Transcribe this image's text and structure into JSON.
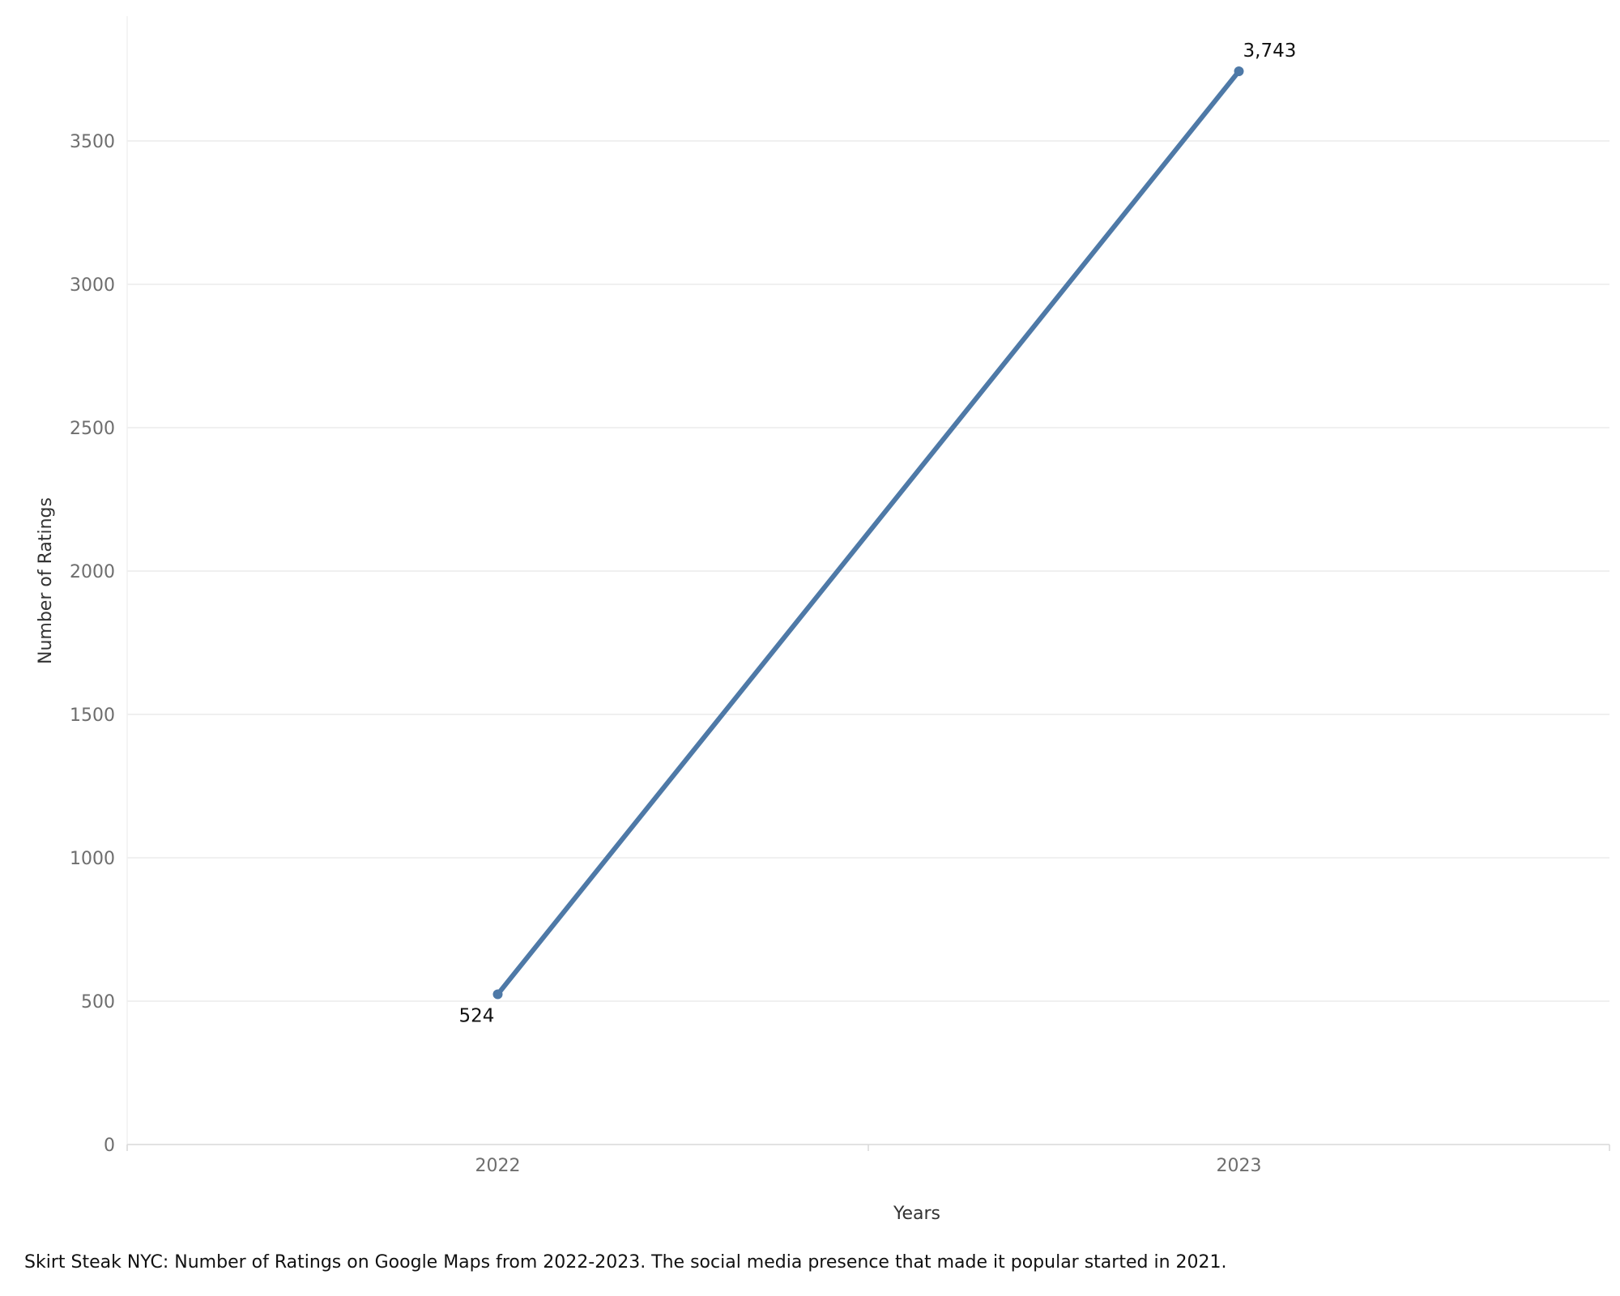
{
  "caption": "Skirt Steak NYC: Number of Ratings on Google Maps from 2022-2023. The social media presence that made it popular started in 2021.",
  "chart_data": {
    "type": "line",
    "title": "",
    "xlabel": "Years",
    "ylabel": "Number of Ratings",
    "categories": [
      "2022",
      "2023"
    ],
    "series": [
      {
        "values": [
          524,
          3743
        ],
        "data_labels": [
          "524",
          "3,743"
        ],
        "color": "#4e79a7"
      }
    ],
    "yticks": [
      0,
      500,
      1000,
      1500,
      2000,
      2500,
      3000,
      3500
    ],
    "ytick_labels": [
      "0",
      "500",
      "1000",
      "1500",
      "2000",
      "2500",
      "3000",
      "3500"
    ],
    "ylim": [
      0,
      3960
    ],
    "grid": true,
    "legend": "none"
  },
  "colors": {
    "line": "#4e79a7",
    "grid": "#ebebeb",
    "axis": "#d9d9d9"
  }
}
